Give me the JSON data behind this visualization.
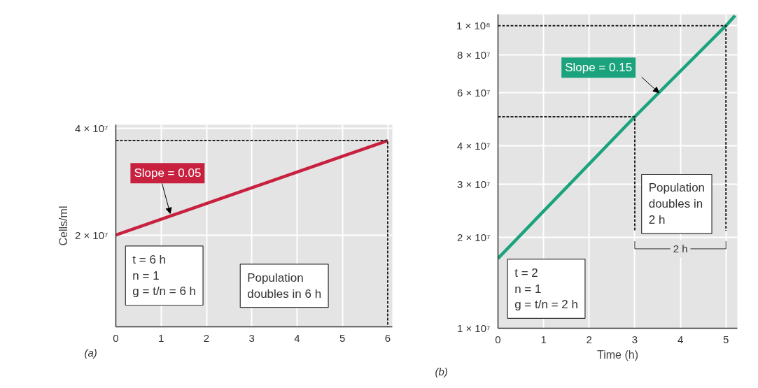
{
  "chart_data": [
    {
      "type": "line",
      "log": "y",
      "ylabel": "Cells/ml",
      "xlim": [
        0,
        6.1
      ],
      "ylim": [
        11000000,
        41000000
      ],
      "xticks": [
        0,
        1,
        2,
        3,
        4,
        5,
        6
      ],
      "yticks": [
        {
          "value": 20000000,
          "label": "2 × 10⁷"
        },
        {
          "value": 40000000,
          "label": "4 × 10⁷"
        }
      ],
      "grid": true,
      "series": [
        {
          "color": "#c8203f",
          "x": [
            0,
            6
          ],
          "values": [
            20000000,
            37000000
          ]
        },
        {
          "color": "#222222",
          "x": [
            0,
            6,
            6
          ],
          "values": [
            37000000,
            37000000,
            11000000
          ],
          "line_style": "dashed"
        }
      ],
      "annotations": [
        {
          "text": "Slope = 0.05",
          "x": 1.2,
          "y": 23000000
        },
        "t = 6 h\nn = 1\ng = t/n = 6 h",
        "Population\ndoubles in 6 h",
        "(a)"
      ]
    },
    {
      "type": "line",
      "log": "y",
      "xlabel": "Time (h)",
      "xlim": [
        0,
        5.25
      ],
      "ylim": [
        10000000,
        109000000
      ],
      "xticks": [
        0,
        1,
        2,
        3,
        4,
        5
      ],
      "yticks": [
        {
          "value": 10000000,
          "label": "1 × 10⁷"
        },
        {
          "value": 20000000,
          "label": "2 × 10⁷"
        },
        {
          "value": 30000000,
          "label": "3 × 10⁷"
        },
        {
          "value": 40000000,
          "label": "4 × 10⁷"
        },
        {
          "value": 60000000,
          "label": "6 × 10⁷"
        },
        {
          "value": 80000000,
          "label": "8 × 10⁷"
        },
        {
          "value": 100000000,
          "label": "1 × 10⁸"
        }
      ],
      "grid": true,
      "series": [
        {
          "color": "#1aa37c",
          "x": [
            0,
            3,
            5,
            5.2
          ],
          "values": [
            17000000,
            50000000,
            100000000,
            108000000
          ]
        },
        {
          "color": "#222222",
          "x": [
            0,
            3,
            3
          ],
          "values": [
            50000000,
            50000000,
            21000000
          ],
          "line_style": "dashed"
        },
        {
          "color": "#222222",
          "x": [
            0,
            5,
            5
          ],
          "values": [
            100000000,
            100000000,
            21000000
          ],
          "line_style": "dashed"
        }
      ],
      "annotations": [
        {
          "text": "Slope = 0.15",
          "x": 3.53,
          "y": 60000000
        },
        "Population\ndoubles in\n2 h",
        {
          "text": "2 h",
          "x": 4,
          "y": 18300000
        },
        "t = 2\nn = 1\ng = t/n = 2 h",
        "(b)"
      ]
    }
  ]
}
